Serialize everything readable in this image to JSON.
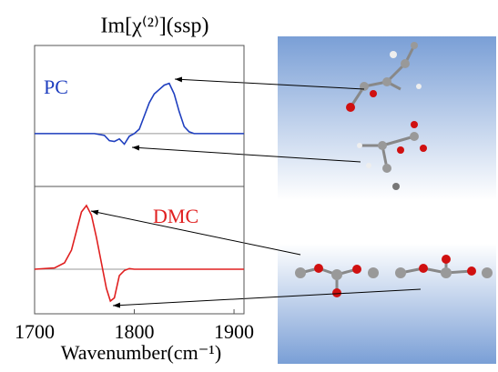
{
  "chart_data": [
    {
      "type": "line",
      "title": "Im[χ⁽²⁾](ssp)",
      "x": [
        1700,
        1760,
        1770,
        1775,
        1780,
        1785,
        1790,
        1795,
        1800,
        1805,
        1810,
        1815,
        1820,
        1825,
        1830,
        1835,
        1840,
        1845,
        1850,
        1855,
        1860,
        1910
      ],
      "series": [
        {
          "name": "PC",
          "color": "#1f3fbf",
          "values": [
            0,
            0,
            -0.02,
            -0.08,
            -0.09,
            -0.06,
            -0.12,
            -0.03,
            0,
            0.05,
            0.2,
            0.35,
            0.45,
            0.5,
            0.55,
            0.57,
            0.45,
            0.25,
            0.08,
            0.02,
            0,
            0
          ]
        }
      ],
      "xlim": [
        1700,
        1910
      ],
      "ylim": [
        -0.6,
        1
      ]
    },
    {
      "type": "line",
      "x": [
        1700,
        1720,
        1730,
        1737,
        1742,
        1747,
        1752,
        1757,
        1762,
        1767,
        1772,
        1776,
        1780,
        1785,
        1790,
        1795,
        1800,
        1910
      ],
      "series": [
        {
          "name": "DMC",
          "color": "#e02020",
          "values": [
            0,
            0.02,
            0.1,
            0.3,
            0.6,
            0.9,
            1.0,
            0.85,
            0.5,
            0.1,
            -0.3,
            -0.5,
            -0.45,
            -0.1,
            -0.02,
            0.01,
            0,
            0
          ]
        }
      ],
      "xlim": [
        1700,
        1910
      ],
      "ylim": [
        -0.7,
        1.3
      ],
      "xticks": [
        1700,
        1800,
        1900
      ],
      "xlabel": "Wavenumber(cm⁻¹)"
    }
  ]
}
